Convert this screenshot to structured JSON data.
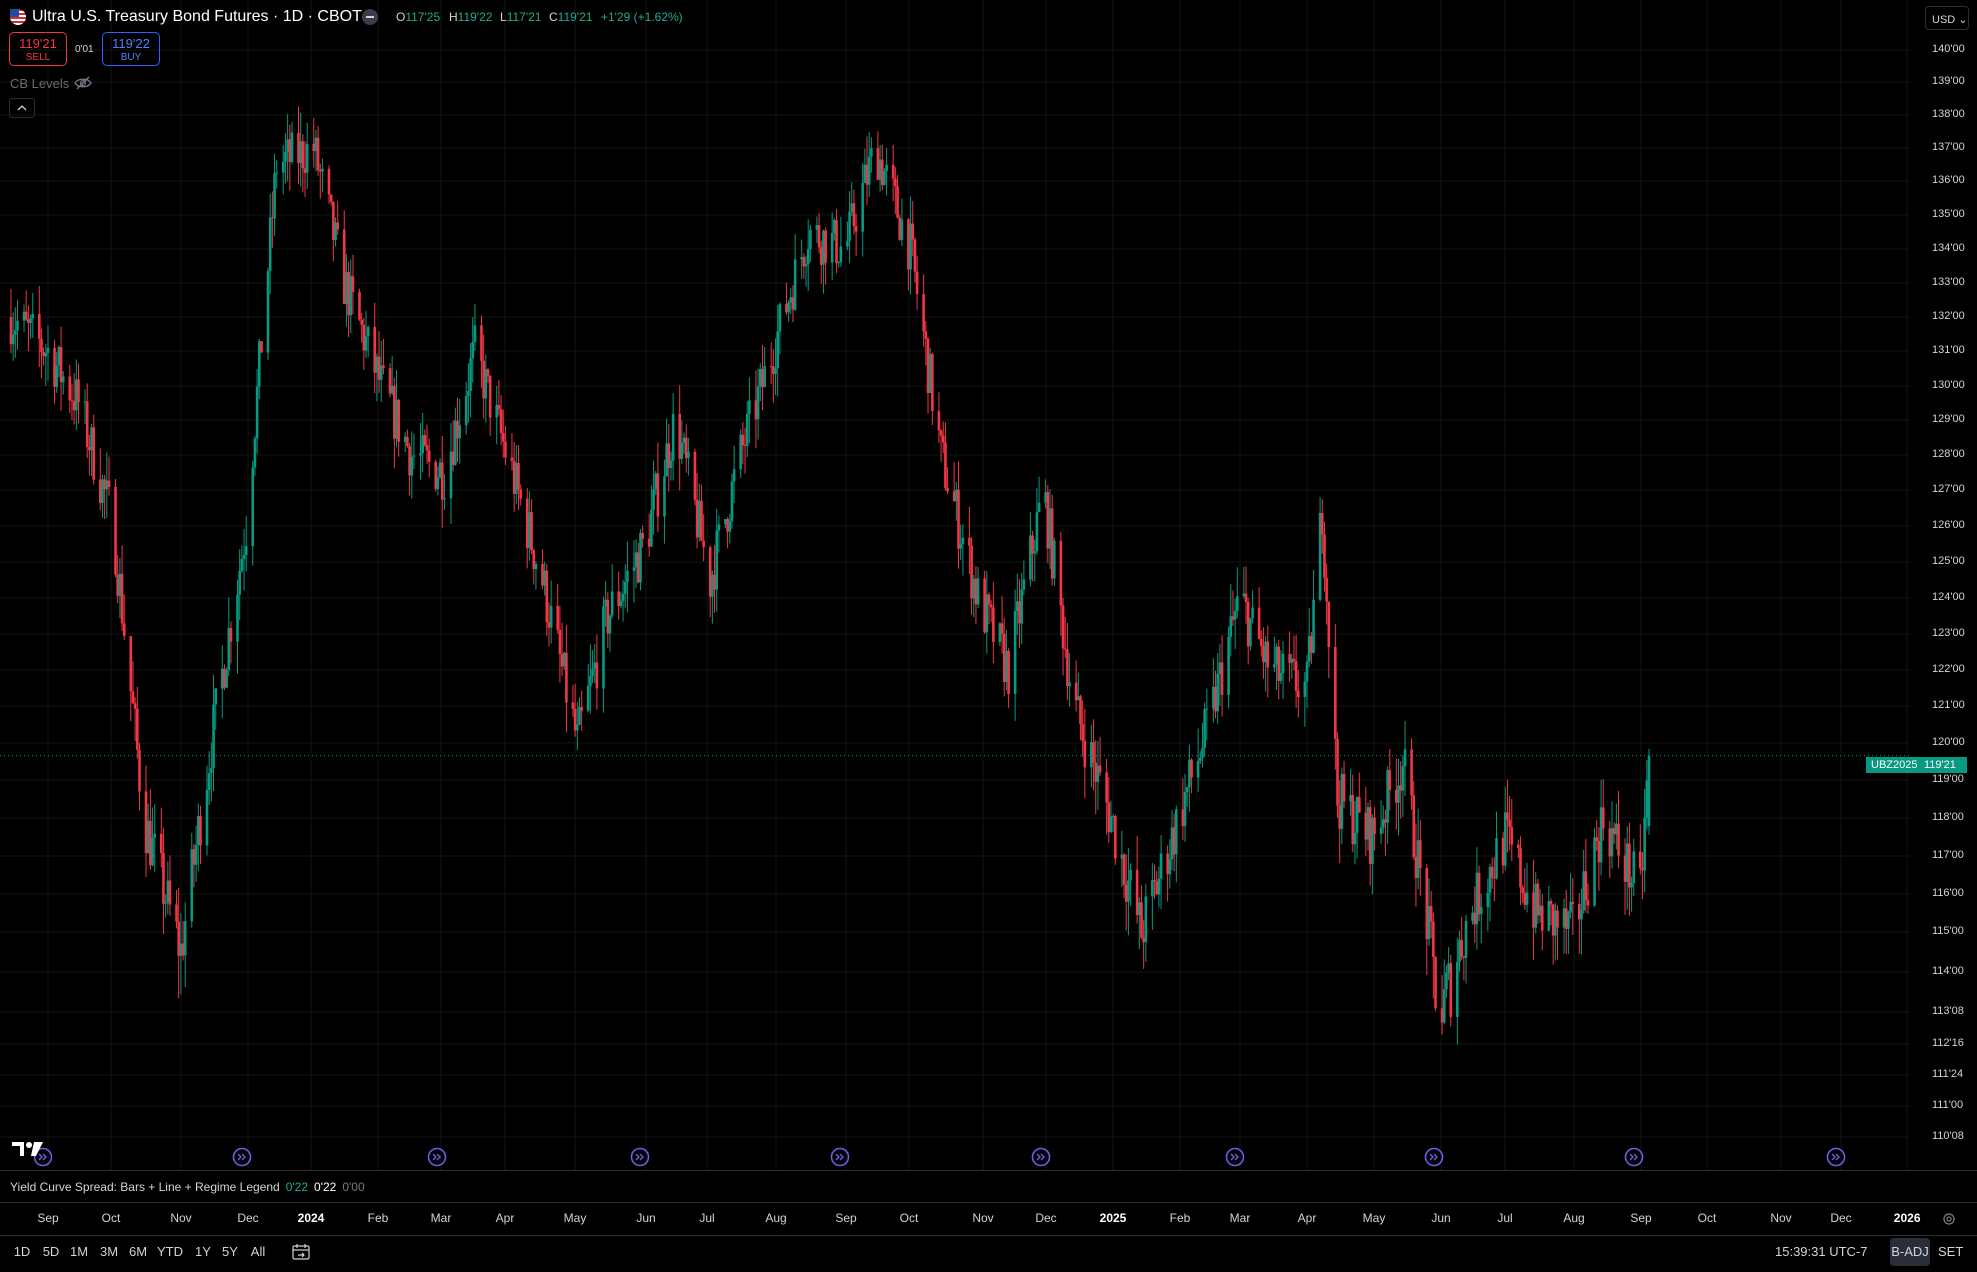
{
  "header": {
    "title": "Ultra U.S. Treasury Bond Futures · 1D · CBOT",
    "ohlc": {
      "o_label": "O",
      "o_value": "117'25",
      "h_label": "H",
      "h_value": "119'22",
      "l_label": "L",
      "l_value": "117'21",
      "c_label": "C",
      "c_value": "119'21",
      "change": "+1'29 (+1.62%)"
    }
  },
  "trade": {
    "sell_price": "119'21",
    "sell_label": "SELL",
    "spread": "0'01",
    "buy_price": "119'22",
    "buy_label": "BUY"
  },
  "cb_levels_label": "CB Levels",
  "currency": "USD",
  "last_price_tag": {
    "symbol": "UBZ2025",
    "price": "119'21"
  },
  "indicator": {
    "name": "Yield Curve Spread: Bars + Line + Regime Legend",
    "value1": "0'22",
    "value2": "0'22",
    "value3": "0'00"
  },
  "toolbar": {
    "ranges": [
      "1D",
      "5D",
      "1M",
      "3M",
      "6M",
      "YTD",
      "1Y",
      "5Y",
      "All"
    ],
    "clock": "15:39:31 UTC-7",
    "badj": "B-ADJ",
    "set": "SET"
  },
  "colors": {
    "up": "#089981",
    "down": "#f23645",
    "grid": "#141414",
    "event": "#6d5ce8"
  },
  "chart_data": {
    "type": "candlestick",
    "title": "Ultra U.S. Treasury Bond Futures · 1D · CBOT",
    "price_ticks": [
      "140'00",
      "139'00",
      "138'00",
      "137'00",
      "136'00",
      "135'00",
      "134'00",
      "133'00",
      "132'00",
      "131'00",
      "130'00",
      "129'00",
      "128'00",
      "127'00",
      "126'00",
      "125'00",
      "124'00",
      "123'00",
      "122'00",
      "121'00",
      "120'00",
      "119'00",
      "118'00",
      "117'00",
      "116'00",
      "115'00",
      "114'00",
      "113'08",
      "112'16",
      "111'24",
      "111'00",
      "110'08"
    ],
    "time_ticks": [
      "Sep",
      "Oct",
      "Nov",
      "Dec",
      "2024",
      "Feb",
      "Mar",
      "Apr",
      "May",
      "Jun",
      "Jul",
      "Aug",
      "Sep",
      "Oct",
      "Nov",
      "Dec",
      "2025",
      "Feb",
      "Mar",
      "Apr",
      "May",
      "Jun",
      "Jul",
      "Aug",
      "Sep",
      "Oct",
      "Nov",
      "Dec",
      "2026"
    ],
    "price_range": [
      110,
      140.5
    ],
    "approx_close_path": [
      {
        "date": "2023-08-15",
        "close": 132.0
      },
      {
        "date": "2023-09-01",
        "close": 131.0
      },
      {
        "date": "2023-09-15",
        "close": 129.5
      },
      {
        "date": "2023-10-01",
        "close": 126.0
      },
      {
        "date": "2023-10-15",
        "close": 118.0
      },
      {
        "date": "2023-11-01",
        "close": 114.5
      },
      {
        "date": "2023-11-15",
        "close": 120.0
      },
      {
        "date": "2023-12-01",
        "close": 126.0
      },
      {
        "date": "2023-12-15",
        "close": 136.5
      },
      {
        "date": "2024-01-01",
        "close": 137.0
      },
      {
        "date": "2024-01-15",
        "close": 133.0
      },
      {
        "date": "2024-02-01",
        "close": 130.0
      },
      {
        "date": "2024-02-15",
        "close": 128.0
      },
      {
        "date": "2024-03-01",
        "close": 127.5
      },
      {
        "date": "2024-03-15",
        "close": 131.0
      },
      {
        "date": "2024-04-01",
        "close": 127.5
      },
      {
        "date": "2024-04-15",
        "close": 124.5
      },
      {
        "date": "2024-05-01",
        "close": 120.0
      },
      {
        "date": "2024-05-15",
        "close": 123.5
      },
      {
        "date": "2024-06-01",
        "close": 125.5
      },
      {
        "date": "2024-06-15",
        "close": 129.0
      },
      {
        "date": "2024-07-01",
        "close": 124.5
      },
      {
        "date": "2024-07-15",
        "close": 128.0
      },
      {
        "date": "2024-08-01",
        "close": 131.5
      },
      {
        "date": "2024-08-15",
        "close": 134.5
      },
      {
        "date": "2024-09-01",
        "close": 134.0
      },
      {
        "date": "2024-09-15",
        "close": 137.0
      },
      {
        "date": "2024-10-01",
        "close": 134.0
      },
      {
        "date": "2024-10-15",
        "close": 128.0
      },
      {
        "date": "2024-11-01",
        "close": 124.0
      },
      {
        "date": "2024-11-15",
        "close": 122.0
      },
      {
        "date": "2024-12-01",
        "close": 127.0
      },
      {
        "date": "2024-12-15",
        "close": 121.0
      },
      {
        "date": "2025-01-01",
        "close": 118.0
      },
      {
        "date": "2025-01-15",
        "close": 115.0
      },
      {
        "date": "2025-02-01",
        "close": 118.0
      },
      {
        "date": "2025-02-15",
        "close": 120.5
      },
      {
        "date": "2025-03-01",
        "close": 124.0
      },
      {
        "date": "2025-03-15",
        "close": 122.0
      },
      {
        "date": "2025-04-01",
        "close": 121.5
      },
      {
        "date": "2025-04-08",
        "close": 126.5
      },
      {
        "date": "2025-04-15",
        "close": 118.5
      },
      {
        "date": "2025-05-01",
        "close": 117.5
      },
      {
        "date": "2025-05-15",
        "close": 119.5
      },
      {
        "date": "2025-06-01",
        "close": 113.0
      },
      {
        "date": "2025-06-15",
        "close": 115.5
      },
      {
        "date": "2025-07-01",
        "close": 117.5
      },
      {
        "date": "2025-07-15",
        "close": 115.5
      },
      {
        "date": "2025-08-01",
        "close": 115.0
      },
      {
        "date": "2025-08-15",
        "close": 118.0
      },
      {
        "date": "2025-09-01",
        "close": 116.0
      },
      {
        "date": "2025-09-05",
        "close": 119.66
      }
    ]
  }
}
